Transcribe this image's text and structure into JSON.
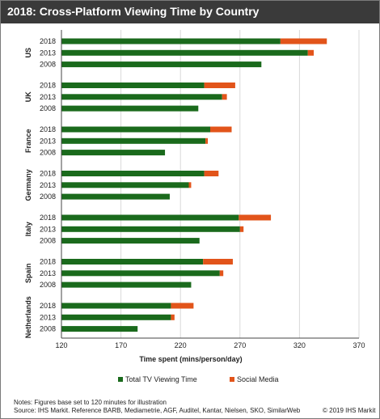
{
  "header": {
    "title": "2018: Cross-Platform Viewing Time by Country"
  },
  "footer": {
    "notes": "Notes: Figures base set to 120 minutes for illustration",
    "source": "Source: IHS Markit. Reference BARB, Mediametrie, AGF, Auditel, Kantar, Nielsen, SKO, SimilarWeb",
    "copyright": "© 2019 IHS Markit"
  },
  "colors": {
    "tv": "#1a6a1c",
    "social": "#e2541a",
    "grid": "#d9d9d9",
    "axis": "#444444"
  },
  "chart_data": {
    "type": "bar",
    "orientation": "horizontal",
    "stacked": true,
    "title": "2018: Cross-Platform Viewing Time by Country",
    "xlabel": "Time spent (mins/person/day)",
    "xlim": [
      120,
      370
    ],
    "xticks": [
      120,
      170,
      220,
      270,
      320,
      370
    ],
    "grid": true,
    "legend_position": "bottom",
    "legend": [
      {
        "name": "Total TV Viewing Time",
        "color": "#1a6a1c"
      },
      {
        "name": "Social Media",
        "color": "#e2541a"
      }
    ],
    "groups": [
      {
        "country": "US",
        "rows": [
          {
            "year": "2018",
            "tv": 304,
            "social": 39
          },
          {
            "year": "2013",
            "tv": 327,
            "social": 5
          },
          {
            "year": "2008",
            "tv": 288,
            "social": 0
          }
        ]
      },
      {
        "country": "UK",
        "rows": [
          {
            "year": "2018",
            "tv": 240,
            "social": 26
          },
          {
            "year": "2013",
            "tv": 255,
            "social": 4
          },
          {
            "year": "2008",
            "tv": 235,
            "social": 0
          }
        ]
      },
      {
        "country": "France",
        "rows": [
          {
            "year": "2018",
            "tv": 245,
            "social": 18
          },
          {
            "year": "2013",
            "tv": 241,
            "social": 2
          },
          {
            "year": "2008",
            "tv": 207,
            "social": 0
          }
        ]
      },
      {
        "country": "Germany",
        "rows": [
          {
            "year": "2018",
            "tv": 240,
            "social": 12
          },
          {
            "year": "2013",
            "tv": 227,
            "social": 2
          },
          {
            "year": "2008",
            "tv": 211,
            "social": 0
          }
        ]
      },
      {
        "country": "Italy",
        "rows": [
          {
            "year": "2018",
            "tv": 269,
            "social": 27
          },
          {
            "year": "2013",
            "tv": 270,
            "social": 3
          },
          {
            "year": "2008",
            "tv": 236,
            "social": 0
          }
        ]
      },
      {
        "country": "Spain",
        "rows": [
          {
            "year": "2018",
            "tv": 239,
            "social": 25
          },
          {
            "year": "2013",
            "tv": 253,
            "social": 3
          },
          {
            "year": "2008",
            "tv": 229,
            "social": 0
          }
        ]
      },
      {
        "country": "Netherlands",
        "rows": [
          {
            "year": "2018",
            "tv": 212,
            "social": 19
          },
          {
            "year": "2013",
            "tv": 212,
            "social": 3
          },
          {
            "year": "2008",
            "tv": 184,
            "social": 0
          }
        ]
      }
    ]
  }
}
